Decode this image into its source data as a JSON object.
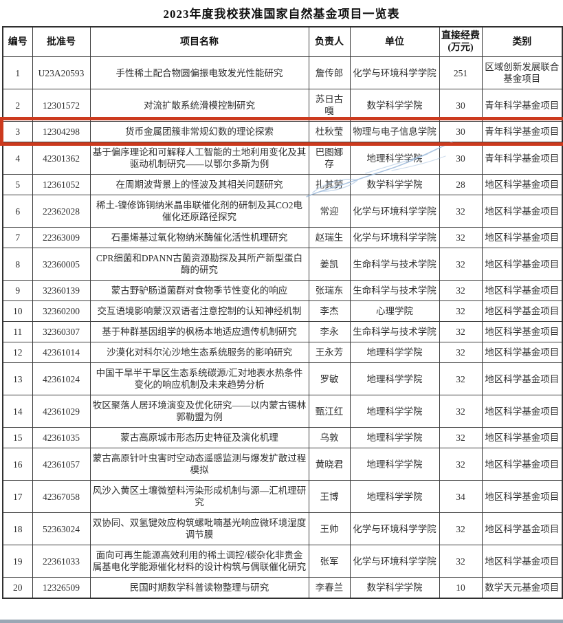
{
  "page": {
    "title": "2023年度我校获准国家自然基金项目一览表"
  },
  "colors": {
    "highlight_red": "#cc3a1e",
    "pen_blue": "#9dbbdc",
    "bottom_bar": "#9aa7b4"
  },
  "table": {
    "headers": [
      "编号",
      "批准号",
      "项目名称",
      "负责人",
      "单位",
      "直接经费 (万元)",
      "类别"
    ],
    "highlighted_row_no": "3",
    "rows": [
      {
        "no": "1",
        "approval_no": "U23A20593",
        "project_title": "手性稀土配合物圆偏振电致发光性能研究",
        "pi": "詹传郎",
        "unit": "化学与环境科学学院",
        "funding": "251",
        "category": "区域创新发展联合基金项目"
      },
      {
        "no": "2",
        "approval_no": "12301572",
        "project_title": "对流扩散系统滑模控制研究",
        "pi": "苏日古嘎",
        "unit": "数学科学学院",
        "funding": "30",
        "category": "青年科学基金项目"
      },
      {
        "no": "3",
        "approval_no": "12304298",
        "project_title": "货币金属团簇非常规幻数的理论探索",
        "pi": "杜秋莹",
        "unit": "物理与电子信息学院",
        "funding": "30",
        "category": "青年科学基金项目"
      },
      {
        "no": "4",
        "approval_no": "42301362",
        "project_title": "基于偏序理论和可解释人工智能的土地利用变化及其驱动机制研究——以鄂尔多斯为例",
        "pi": "巴图娜存",
        "unit": "地理科学学院",
        "funding": "30",
        "category": "青年科学基金项目"
      },
      {
        "no": "5",
        "approval_no": "12361052",
        "project_title": "在周期波背景上的怪波及其相关问题研究",
        "pi": "扎其劳",
        "unit": "数学科学学院",
        "funding": "28",
        "category": "地区科学基金项目"
      },
      {
        "no": "6",
        "approval_no": "22362028",
        "project_title": "稀土-镍修饰铜纳米晶串联催化剂的研制及其CO2电催化还原路径探究",
        "pi": "常迎",
        "unit": "化学与环境科学学院",
        "funding": "32",
        "category": "地区科学基金项目"
      },
      {
        "no": "7",
        "approval_no": "22363009",
        "project_title": "石墨烯基过氧化物纳米酶催化活性机理研究",
        "pi": "赵瑞生",
        "unit": "化学与环境科学学院",
        "funding": "32",
        "category": "地区科学基金项目"
      },
      {
        "no": "8",
        "approval_no": "32360005",
        "project_title": "CPR细菌和DPANN古菌资源勘探及其所产新型蛋白酶的研究",
        "pi": "姜凯",
        "unit": "生命科学与技术学院",
        "funding": "32",
        "category": "地区科学基金项目"
      },
      {
        "no": "9",
        "approval_no": "32360139",
        "project_title": "蒙古野驴肠道菌群对食物季节性变化的响应",
        "pi": "张瑞东",
        "unit": "生命科学与技术学院",
        "funding": "32",
        "category": "地区科学基金项目"
      },
      {
        "no": "10",
        "approval_no": "32360200",
        "project_title": "交互语境影响蒙汉双语者注意控制的认知神经机制",
        "pi": "李杰",
        "unit": "心理学院",
        "funding": "32",
        "category": "地区科学基金项目"
      },
      {
        "no": "11",
        "approval_no": "32360307",
        "project_title": "基于种群基因组学的枫杨本地适应遗传机制研究",
        "pi": "李永",
        "unit": "生命科学与技术学院",
        "funding": "32",
        "category": "地区科学基金项目"
      },
      {
        "no": "12",
        "approval_no": "42361014",
        "project_title": "沙漠化对科尔沁沙地生态系统服务的影响研究",
        "pi": "王永芳",
        "unit": "地理科学学院",
        "funding": "32",
        "category": "地区科学基金项目"
      },
      {
        "no": "13",
        "approval_no": "42361024",
        "project_title": "中国干旱半干旱区生态系统碳源/汇对地表水热条件变化的响应机制及未来趋势分析",
        "pi": "罗敏",
        "unit": "地理科学学院",
        "funding": "32",
        "category": "地区科学基金项目"
      },
      {
        "no": "14",
        "approval_no": "42361029",
        "project_title": "牧区聚落人居环境演变及优化研究——以内蒙古锡林郭勒盟为例",
        "pi": "甄江红",
        "unit": "地理科学学院",
        "funding": "32",
        "category": "地区科学基金项目"
      },
      {
        "no": "15",
        "approval_no": "42361035",
        "project_title": "蒙古高原城市形态历史特征及演化机理",
        "pi": "乌敦",
        "unit": "地理科学学院",
        "funding": "32",
        "category": "地区科学基金项目"
      },
      {
        "no": "16",
        "approval_no": "42361057",
        "project_title": "蒙古高原针叶虫害时空动态遥感监测与爆发扩散过程模拟",
        "pi": "黄晓君",
        "unit": "地理科学学院",
        "funding": "32",
        "category": "地区科学基金项目"
      },
      {
        "no": "17",
        "approval_no": "42367058",
        "project_title": "风沙入黄区土壤微塑料污染形成机制与源—汇机理研究",
        "pi": "王博",
        "unit": "地理科学学院",
        "funding": "34",
        "category": "地区科学基金项目"
      },
      {
        "no": "18",
        "approval_no": "52363024",
        "project_title": "双协同、双氢键效应构筑螺吡喃基光响应微环境湿度调节膜",
        "pi": "王帅",
        "unit": "化学与环境科学学院",
        "funding": "32",
        "category": "地区科学基金项目"
      },
      {
        "no": "19",
        "approval_no": "22361033",
        "project_title": "面向可再生能源高效利用的稀土调控/碳杂化非贵金属基电化学能源催化材料的设计构筑与偶联催化研究",
        "pi": "张军",
        "unit": "化学与环境科学学院",
        "funding": "32",
        "category": "地区科学基金项目"
      },
      {
        "no": "20",
        "approval_no": "12326509",
        "project_title": "民国时期数学科普读物整理与研究",
        "pi": "李春兰",
        "unit": "数学科学学院",
        "funding": "10",
        "category": "数学天元基金项目"
      }
    ]
  }
}
